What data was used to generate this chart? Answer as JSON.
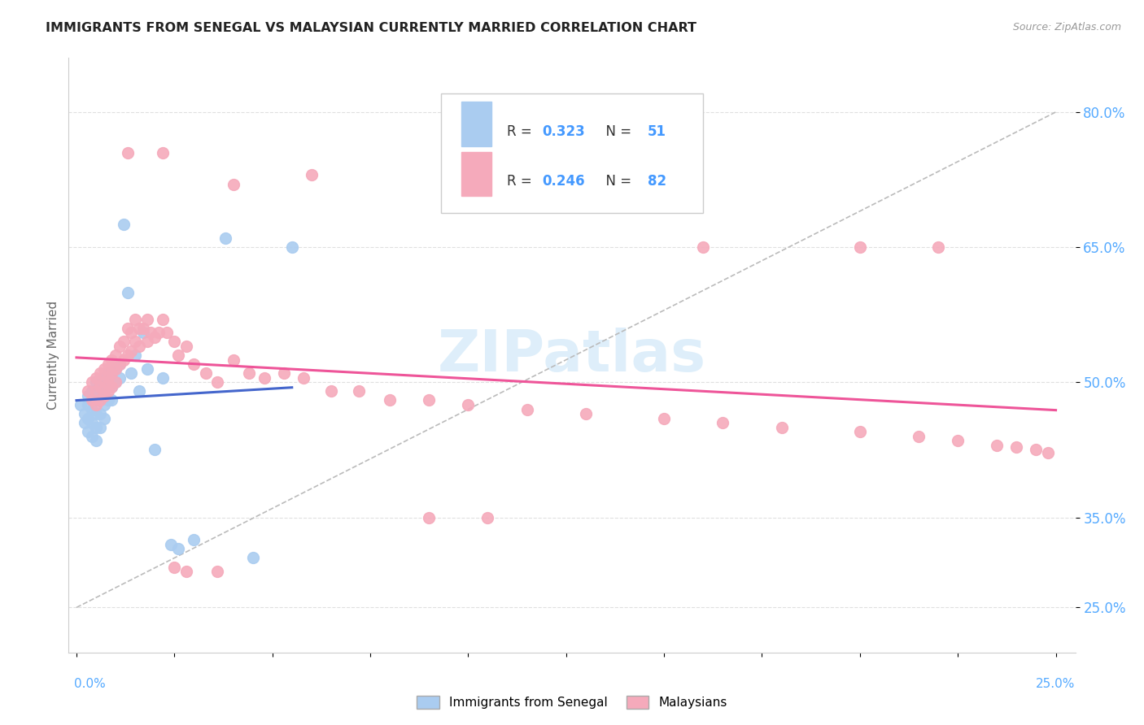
{
  "title": "IMMIGRANTS FROM SENEGAL VS MALAYSIAN CURRENTLY MARRIED CORRELATION CHART",
  "source": "Source: ZipAtlas.com",
  "ylabel": "Currently Married",
  "ytick_labels": [
    "25.0%",
    "35.0%",
    "50.0%",
    "65.0%",
    "80.0%"
  ],
  "ytick_values": [
    0.25,
    0.35,
    0.5,
    0.65,
    0.8
  ],
  "xlim": [
    -0.002,
    0.255
  ],
  "ylim": [
    0.2,
    0.86
  ],
  "legend_r1": "R = 0.323",
  "legend_n1": "N = 51",
  "legend_r2": "R = 0.246",
  "legend_n2": "N = 82",
  "color_blue": "#aaccf0",
  "color_pink": "#f5aabb",
  "color_blue_text": "#4499ff",
  "color_blue_tick": "#55aaff",
  "watermark_text": "ZIPatlas",
  "watermark_color": "#d0e8f8",
  "background_color": "#ffffff",
  "grid_color": "#e0e0e0",
  "trendline_blue_color": "#4466cc",
  "trendline_pink_color": "#ee5599",
  "diagonal_color": "#bbbbbb",
  "blue_scatter_x": [
    0.001,
    0.002,
    0.002,
    0.003,
    0.003,
    0.003,
    0.003,
    0.004,
    0.004,
    0.004,
    0.004,
    0.004,
    0.005,
    0.005,
    0.005,
    0.005,
    0.005,
    0.005,
    0.006,
    0.006,
    0.006,
    0.006,
    0.007,
    0.007,
    0.007,
    0.007,
    0.008,
    0.008,
    0.008,
    0.009,
    0.009,
    0.009,
    0.01,
    0.01,
    0.011,
    0.011,
    0.012,
    0.013,
    0.014,
    0.015,
    0.016,
    0.017,
    0.018,
    0.02,
    0.022,
    0.024,
    0.026,
    0.03,
    0.038,
    0.045,
    0.055
  ],
  "blue_scatter_y": [
    0.475,
    0.465,
    0.455,
    0.485,
    0.475,
    0.46,
    0.445,
    0.49,
    0.48,
    0.47,
    0.455,
    0.44,
    0.5,
    0.49,
    0.48,
    0.465,
    0.45,
    0.435,
    0.495,
    0.48,
    0.465,
    0.45,
    0.505,
    0.49,
    0.475,
    0.46,
    0.51,
    0.495,
    0.48,
    0.51,
    0.495,
    0.48,
    0.515,
    0.5,
    0.52,
    0.505,
    0.675,
    0.6,
    0.51,
    0.53,
    0.49,
    0.555,
    0.515,
    0.425,
    0.505,
    0.32,
    0.315,
    0.325,
    0.66,
    0.305,
    0.65
  ],
  "pink_scatter_x": [
    0.003,
    0.004,
    0.004,
    0.005,
    0.005,
    0.005,
    0.006,
    0.006,
    0.006,
    0.007,
    0.007,
    0.007,
    0.008,
    0.008,
    0.008,
    0.009,
    0.009,
    0.009,
    0.01,
    0.01,
    0.01,
    0.011,
    0.011,
    0.012,
    0.012,
    0.013,
    0.013,
    0.014,
    0.014,
    0.015,
    0.015,
    0.016,
    0.016,
    0.017,
    0.018,
    0.018,
    0.019,
    0.02,
    0.021,
    0.022,
    0.023,
    0.025,
    0.026,
    0.028,
    0.03,
    0.033,
    0.036,
    0.04,
    0.044,
    0.048,
    0.053,
    0.058,
    0.065,
    0.072,
    0.08,
    0.09,
    0.1,
    0.115,
    0.13,
    0.15,
    0.165,
    0.18,
    0.2,
    0.215,
    0.225,
    0.235,
    0.24,
    0.245,
    0.248,
    0.013,
    0.022,
    0.04,
    0.06,
    0.1,
    0.16,
    0.2,
    0.22,
    0.09,
    0.105,
    0.025,
    0.036,
    0.028
  ],
  "pink_scatter_y": [
    0.49,
    0.5,
    0.48,
    0.505,
    0.49,
    0.475,
    0.51,
    0.495,
    0.48,
    0.515,
    0.5,
    0.485,
    0.52,
    0.505,
    0.49,
    0.525,
    0.51,
    0.495,
    0.53,
    0.515,
    0.5,
    0.54,
    0.52,
    0.545,
    0.525,
    0.56,
    0.53,
    0.555,
    0.535,
    0.57,
    0.545,
    0.56,
    0.54,
    0.56,
    0.57,
    0.545,
    0.555,
    0.55,
    0.555,
    0.57,
    0.555,
    0.545,
    0.53,
    0.54,
    0.52,
    0.51,
    0.5,
    0.525,
    0.51,
    0.505,
    0.51,
    0.505,
    0.49,
    0.49,
    0.48,
    0.48,
    0.475,
    0.47,
    0.465,
    0.46,
    0.455,
    0.45,
    0.445,
    0.44,
    0.435,
    0.43,
    0.428,
    0.425,
    0.422,
    0.755,
    0.755,
    0.72,
    0.73,
    0.72,
    0.65,
    0.65,
    0.65,
    0.35,
    0.35,
    0.295,
    0.29,
    0.29
  ],
  "xtick_positions": [
    0.0,
    0.025,
    0.05,
    0.075,
    0.1,
    0.125,
    0.15,
    0.175,
    0.2,
    0.225,
    0.25
  ]
}
